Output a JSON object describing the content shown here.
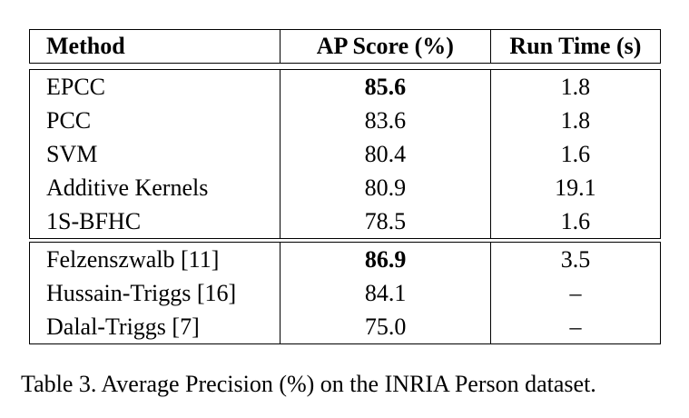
{
  "table": {
    "headers": [
      "Method",
      "AP Score (%)",
      "Run Time (s)"
    ],
    "group1": [
      {
        "method": "EPCC",
        "ap": "85.6",
        "time": "1.8",
        "ap_bold": true
      },
      {
        "method": "PCC",
        "ap": "83.6",
        "time": "1.8",
        "ap_bold": false
      },
      {
        "method": "SVM",
        "ap": "80.4",
        "time": "1.6",
        "ap_bold": false
      },
      {
        "method": "Additive Kernels",
        "ap": "80.9",
        "time": "19.1",
        "ap_bold": false
      },
      {
        "method": "1S-BFHC",
        "ap": "78.5",
        "time": "1.6",
        "ap_bold": false
      }
    ],
    "group2": [
      {
        "method": "Felzenszwalb [11]",
        "ap": "86.9",
        "time": "3.5",
        "ap_bold": true
      },
      {
        "method": "Hussain-Triggs [16]",
        "ap": "84.1",
        "time": "–",
        "ap_bold": false
      },
      {
        "method": "Dalal-Triggs [7]",
        "ap": "75.0",
        "time": "–",
        "ap_bold": false
      }
    ]
  },
  "caption": "Table 3. Average Precision (%) on the INRIA Person dataset."
}
